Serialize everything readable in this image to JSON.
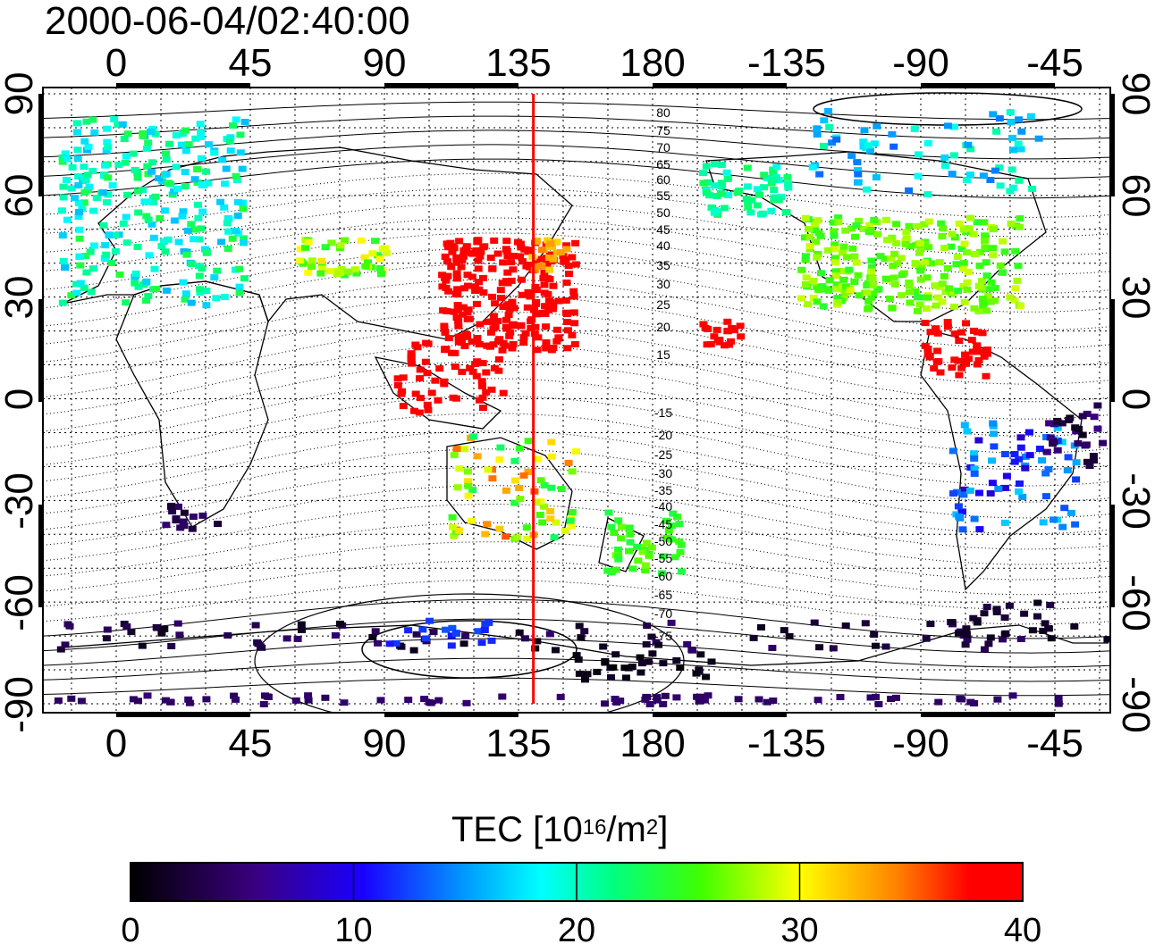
{
  "title": "2000-06-04/02:40:00",
  "colors": {
    "terminator": "#ff0000",
    "frame": "#000000"
  },
  "map": {
    "x_ticks": [
      "0",
      "45",
      "90",
      "135",
      "180",
      "-135",
      "-90",
      "-45"
    ],
    "y_ticks": [
      "90",
      "60",
      "30",
      "0",
      "-30",
      "-60",
      "-90"
    ],
    "contour_labels": [
      "80",
      "75",
      "70",
      "65",
      "60",
      "55",
      "50",
      "45",
      "40",
      "35",
      "30",
      "25",
      "20",
      "15",
      "-15",
      "-20",
      "-25",
      "-30",
      "-35",
      "-40",
      "-45",
      "-50",
      "-55",
      "-60",
      "-65",
      "-70",
      "-75"
    ],
    "terminator_longitude": 140
  },
  "colorbar": {
    "title_main": "TEC  [10",
    "title_exp1": "16",
    "title_mid": "/m",
    "title_exp2": "2",
    "title_end": "]",
    "min": 0,
    "max": 40,
    "ticks": [
      "0",
      "10",
      "20",
      "30",
      "40"
    ]
  }
}
